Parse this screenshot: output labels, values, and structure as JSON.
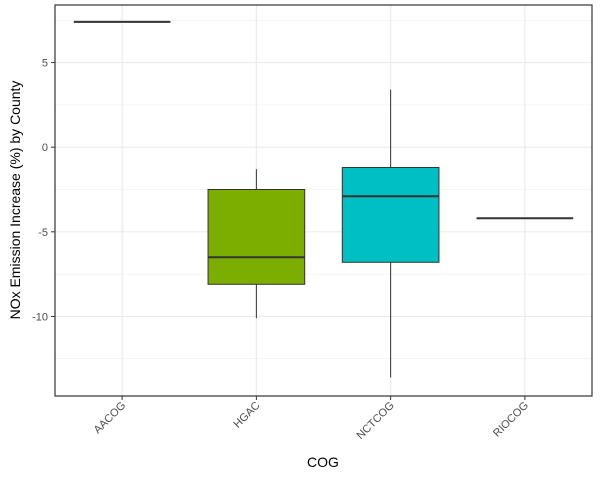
{
  "chart_data": {
    "type": "box",
    "title": "",
    "xlabel": "COG",
    "ylabel": "NOx Emission Increase (%) by County",
    "categories": [
      "AACOG",
      "HGAC",
      "NCTCOG",
      "RIOCOG"
    ],
    "ylim": [
      -14.7,
      8.4
    ],
    "yticks": [
      5,
      0,
      -5,
      -10
    ],
    "ytick_labels": [
      "5",
      "0",
      "-5",
      "-10"
    ],
    "grid": true,
    "legend": "none",
    "boxes": [
      {
        "category": "AACOG",
        "min": 7.4,
        "q1": 7.4,
        "median": 7.4,
        "q3": 7.4,
        "max": 7.4,
        "fill": "#F8766D"
      },
      {
        "category": "HGAC",
        "min": -10.1,
        "q1": -8.1,
        "median": -6.5,
        "q3": -2.5,
        "max": -1.3,
        "fill": "#7CAE00"
      },
      {
        "category": "NCTCOG",
        "min": -13.6,
        "q1": -6.8,
        "median": -2.9,
        "q3": -1.2,
        "max": 3.4,
        "fill": "#00BFC4"
      },
      {
        "category": "RIOCOG",
        "min": -4.2,
        "q1": -4.2,
        "median": -4.2,
        "q3": -4.2,
        "max": -4.2,
        "fill": "#C77CFF"
      }
    ],
    "colors": {
      "grid": "#ebebeb",
      "border": "#333333",
      "line": "#333333"
    }
  }
}
